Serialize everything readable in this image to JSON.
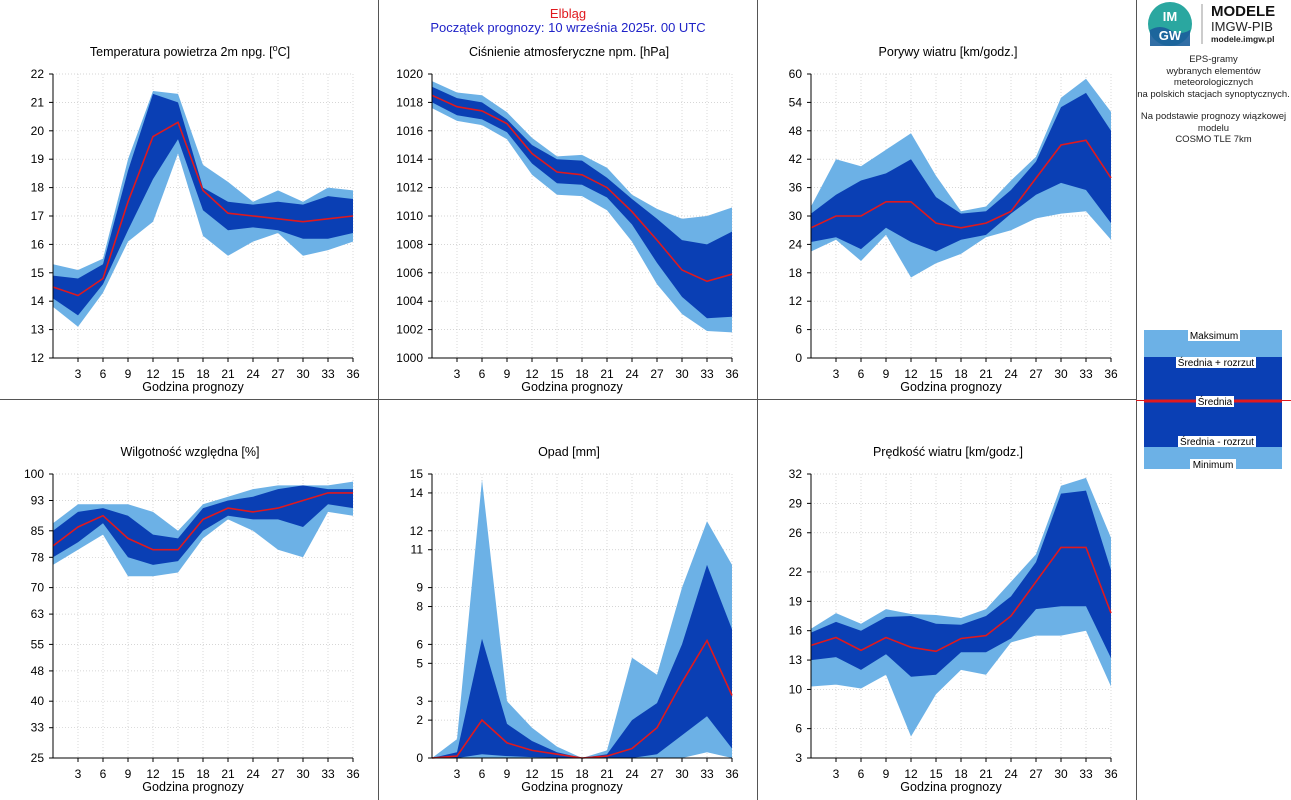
{
  "header": {
    "city": "Elbląg",
    "start": "Początek prognozy: 10 września 2025r. 00 UTC"
  },
  "logo": {
    "mark": "IMGW",
    "title": "MODELE",
    "subtitle": "IMGW-PIB",
    "url": "modele.imgw.pl"
  },
  "side": {
    "desc_lines": [
      "EPS-gramy",
      "wybranych elementów meteorologicznych",
      "na polskich stacjach  synoptycznych.",
      "",
      "Na podstawie prognozy wiązkowej modelu",
      "COSMO TLE 7km"
    ]
  },
  "legend": {
    "labels": [
      "Maksimum",
      "Średnia + rozrzut",
      "Średnia",
      "Średnia - rozrzut",
      "Minimum"
    ]
  },
  "colors": {
    "range": "#6cb1e6",
    "spread": "#0a3fb4",
    "mean": "#e0191e",
    "grid": "#c8c8c8",
    "border": "#555555"
  },
  "chart_data": [
    {
      "type": "area",
      "title_pre": "Temperatura powietrza 2m npg. [",
      "title_sup": "o",
      "title_post": "C]",
      "xlabel": "Godzina prognozy",
      "x": [
        0,
        3,
        6,
        9,
        12,
        15,
        18,
        21,
        24,
        27,
        30,
        33,
        36
      ],
      "x_ticks": [
        3,
        6,
        9,
        12,
        15,
        18,
        21,
        24,
        27,
        30,
        33,
        36
      ],
      "ylim": [
        12,
        22
      ],
      "y_ticks": [
        12,
        13,
        14,
        15,
        16,
        17,
        18,
        19,
        20,
        21,
        22
      ],
      "max": [
        15.3,
        15.1,
        15.5,
        19.0,
        21.4,
        21.3,
        18.8,
        18.2,
        17.5,
        17.9,
        17.5,
        18.0,
        17.9
      ],
      "plus": [
        14.9,
        14.8,
        15.3,
        18.6,
        21.3,
        21.0,
        18.0,
        17.5,
        17.4,
        17.5,
        17.4,
        17.7,
        17.6
      ],
      "mean": [
        14.5,
        14.2,
        14.8,
        17.5,
        19.8,
        20.3,
        17.9,
        17.1,
        17.0,
        16.9,
        16.8,
        16.9,
        17.0
      ],
      "minus": [
        14.1,
        13.5,
        14.6,
        16.5,
        18.3,
        19.7,
        17.2,
        16.5,
        16.6,
        16.5,
        16.2,
        16.2,
        16.4
      ],
      "min": [
        13.8,
        13.1,
        14.3,
        16.1,
        16.8,
        19.2,
        16.3,
        15.6,
        16.1,
        16.4,
        15.6,
        15.8,
        16.1
      ]
    },
    {
      "type": "area",
      "title": "Ciśnienie atmosferyczne npm. [hPa]",
      "xlabel": "Godzina prognozy",
      "x": [
        0,
        3,
        6,
        9,
        12,
        15,
        18,
        21,
        24,
        27,
        30,
        33,
        36
      ],
      "x_ticks": [
        3,
        6,
        9,
        12,
        15,
        18,
        21,
        24,
        27,
        30,
        33,
        36
      ],
      "ylim": [
        1000,
        1020
      ],
      "y_ticks": [
        1000,
        1002,
        1004,
        1006,
        1008,
        1010,
        1012,
        1014,
        1016,
        1018,
        1020
      ],
      "max": [
        1019.5,
        1018.7,
        1018.5,
        1017.3,
        1015.5,
        1014.2,
        1014.3,
        1013.4,
        1011.5,
        1010.5,
        1009.8,
        1010.0,
        1010.6
      ],
      "plus": [
        1019.1,
        1018.3,
        1018.0,
        1016.8,
        1015.0,
        1014.0,
        1013.9,
        1012.7,
        1011.2,
        1009.8,
        1008.3,
        1008.0,
        1008.9
      ],
      "mean": [
        1018.5,
        1017.7,
        1017.4,
        1016.5,
        1014.4,
        1013.1,
        1012.9,
        1012.0,
        1010.3,
        1008.3,
        1006.2,
        1005.4,
        1005.9
      ],
      "minus": [
        1018.0,
        1017.1,
        1016.8,
        1015.9,
        1013.7,
        1012.3,
        1012.2,
        1011.3,
        1009.4,
        1006.7,
        1004.3,
        1002.8,
        1002.9
      ],
      "min": [
        1017.6,
        1016.7,
        1016.4,
        1015.4,
        1012.9,
        1011.5,
        1011.4,
        1010.4,
        1008.2,
        1005.2,
        1003.1,
        1001.9,
        1001.8
      ]
    },
    {
      "type": "area",
      "title": "Porywy wiatru [km/godz.]",
      "xlabel": "Godzina prognozy",
      "x": [
        0,
        3,
        6,
        9,
        12,
        15,
        18,
        21,
        24,
        27,
        30,
        33,
        36
      ],
      "x_ticks": [
        3,
        6,
        9,
        12,
        15,
        18,
        21,
        24,
        27,
        30,
        33,
        36
      ],
      "ylim": [
        0,
        60
      ],
      "y_ticks": [
        0,
        6,
        12,
        18,
        24,
        30,
        36,
        42,
        48,
        54,
        60
      ],
      "max": [
        32.0,
        42.0,
        40.5,
        44.0,
        47.5,
        38.5,
        31.0,
        32.0,
        37.5,
        42.5,
        55.0,
        59.0,
        52.0
      ],
      "plus": [
        30.5,
        34.5,
        37.5,
        39.0,
        42.0,
        34.0,
        30.5,
        31.0,
        35.5,
        41.5,
        53.0,
        56.0,
        48.0
      ],
      "mean": [
        27.5,
        30.0,
        30.0,
        33.0,
        33.0,
        28.5,
        27.5,
        28.5,
        31.0,
        38.0,
        45.0,
        46.0,
        38.0
      ],
      "minus": [
        24.5,
        25.5,
        23.0,
        27.5,
        24.5,
        22.5,
        25.0,
        26.0,
        30.5,
        34.5,
        37.0,
        35.5,
        28.5
      ],
      "min": [
        22.5,
        25.0,
        20.5,
        26.0,
        17.0,
        20.0,
        22.0,
        25.5,
        27.0,
        29.5,
        30.5,
        31.0,
        25.0
      ]
    },
    {
      "type": "area",
      "title": "Wilgotność względna [%]",
      "xlabel": "Godzina prognozy",
      "x": [
        0,
        3,
        6,
        9,
        12,
        15,
        18,
        21,
        24,
        27,
        30,
        33,
        36
      ],
      "x_ticks": [
        3,
        6,
        9,
        12,
        15,
        18,
        21,
        24,
        27,
        30,
        33,
        36
      ],
      "ylim": [
        25,
        100
      ],
      "y_ticks": [
        25,
        33,
        40,
        48,
        55,
        63,
        70,
        78,
        85,
        93,
        100
      ],
      "max": [
        87,
        92,
        92,
        92,
        90,
        85,
        92,
        94,
        96,
        97,
        97,
        97,
        98
      ],
      "plus": [
        85,
        90,
        91,
        89,
        84,
        83,
        91,
        93,
        94,
        96,
        97,
        96,
        96
      ],
      "mean": [
        81,
        86,
        89,
        83,
        80,
        80,
        88,
        91,
        90,
        91,
        93,
        95,
        95
      ],
      "minus": [
        78,
        82,
        87,
        78,
        76,
        77,
        85,
        89,
        88,
        88,
        86,
        92,
        91
      ],
      "min": [
        76,
        80,
        84,
        73,
        73,
        74,
        83,
        88,
        85,
        80,
        78,
        90,
        89
      ]
    },
    {
      "type": "area",
      "title": "Opad [mm]",
      "xlabel": "Godzina prognozy",
      "x": [
        0,
        3,
        6,
        9,
        12,
        15,
        18,
        21,
        24,
        27,
        30,
        33,
        36
      ],
      "x_ticks": [
        3,
        6,
        9,
        12,
        15,
        18,
        21,
        24,
        27,
        30,
        33,
        36
      ],
      "ylim": [
        0,
        15
      ],
      "y_ticks": [
        0,
        2,
        3,
        5,
        6,
        8,
        9,
        11,
        12,
        14,
        15
      ],
      "y_tick_labels": [
        "0",
        "2",
        "3",
        "5",
        "6",
        "8",
        "9",
        "11",
        "12",
        "14",
        "15"
      ],
      "max": [
        0,
        1.0,
        14.7,
        3.0,
        1.6,
        0.6,
        0,
        0.4,
        5.3,
        4.4,
        9.0,
        12.5,
        10.2
      ],
      "plus": [
        0,
        0.3,
        6.3,
        1.8,
        0.9,
        0.3,
        0,
        0.2,
        2.0,
        2.9,
        6.0,
        10.2,
        6.8
      ],
      "mean": [
        0,
        0.1,
        2.0,
        0.8,
        0.4,
        0.2,
        0,
        0.1,
        0.5,
        1.6,
        4.0,
        6.2,
        3.3
      ],
      "minus": [
        0,
        0,
        0.2,
        0.1,
        0.05,
        0.02,
        0,
        0,
        0,
        0.2,
        1.2,
        2.2,
        0.5
      ],
      "min": [
        0,
        0,
        0,
        0,
        0,
        0,
        0,
        0,
        0,
        0,
        0,
        0.3,
        0
      ]
    },
    {
      "type": "area",
      "title": "Prędkość wiatru [km/godz.]",
      "xlabel": "Godzina prognozy",
      "x": [
        0,
        3,
        6,
        9,
        12,
        15,
        18,
        21,
        24,
        27,
        30,
        33,
        36
      ],
      "x_ticks": [
        3,
        6,
        9,
        12,
        15,
        18,
        21,
        24,
        27,
        30,
        33,
        36
      ],
      "ylim": [
        3,
        32
      ],
      "y_ticks": [
        3,
        6,
        10,
        13,
        16,
        19,
        22,
        26,
        29,
        32
      ],
      "max": [
        16.2,
        17.8,
        16.7,
        18.2,
        17.7,
        17.6,
        17.3,
        18.2,
        21.0,
        23.8,
        30.8,
        31.6,
        25.5
      ],
      "plus": [
        15.8,
        16.9,
        16.0,
        17.4,
        17.5,
        16.7,
        16.6,
        17.5,
        19.5,
        23.0,
        30.0,
        30.3,
        22.2
      ],
      "mean": [
        14.5,
        15.3,
        14.0,
        15.3,
        14.3,
        13.9,
        15.2,
        15.5,
        17.5,
        21.0,
        24.5,
        24.5,
        17.8
      ],
      "minus": [
        13.0,
        13.3,
        12.0,
        13.6,
        11.3,
        11.5,
        13.8,
        13.8,
        15.2,
        18.2,
        18.5,
        18.5,
        13.2
      ],
      "min": [
        10.3,
        10.5,
        10.1,
        11.5,
        5.2,
        9.5,
        12.0,
        11.5,
        14.8,
        15.5,
        15.5,
        16.0,
        10.3
      ]
    }
  ]
}
